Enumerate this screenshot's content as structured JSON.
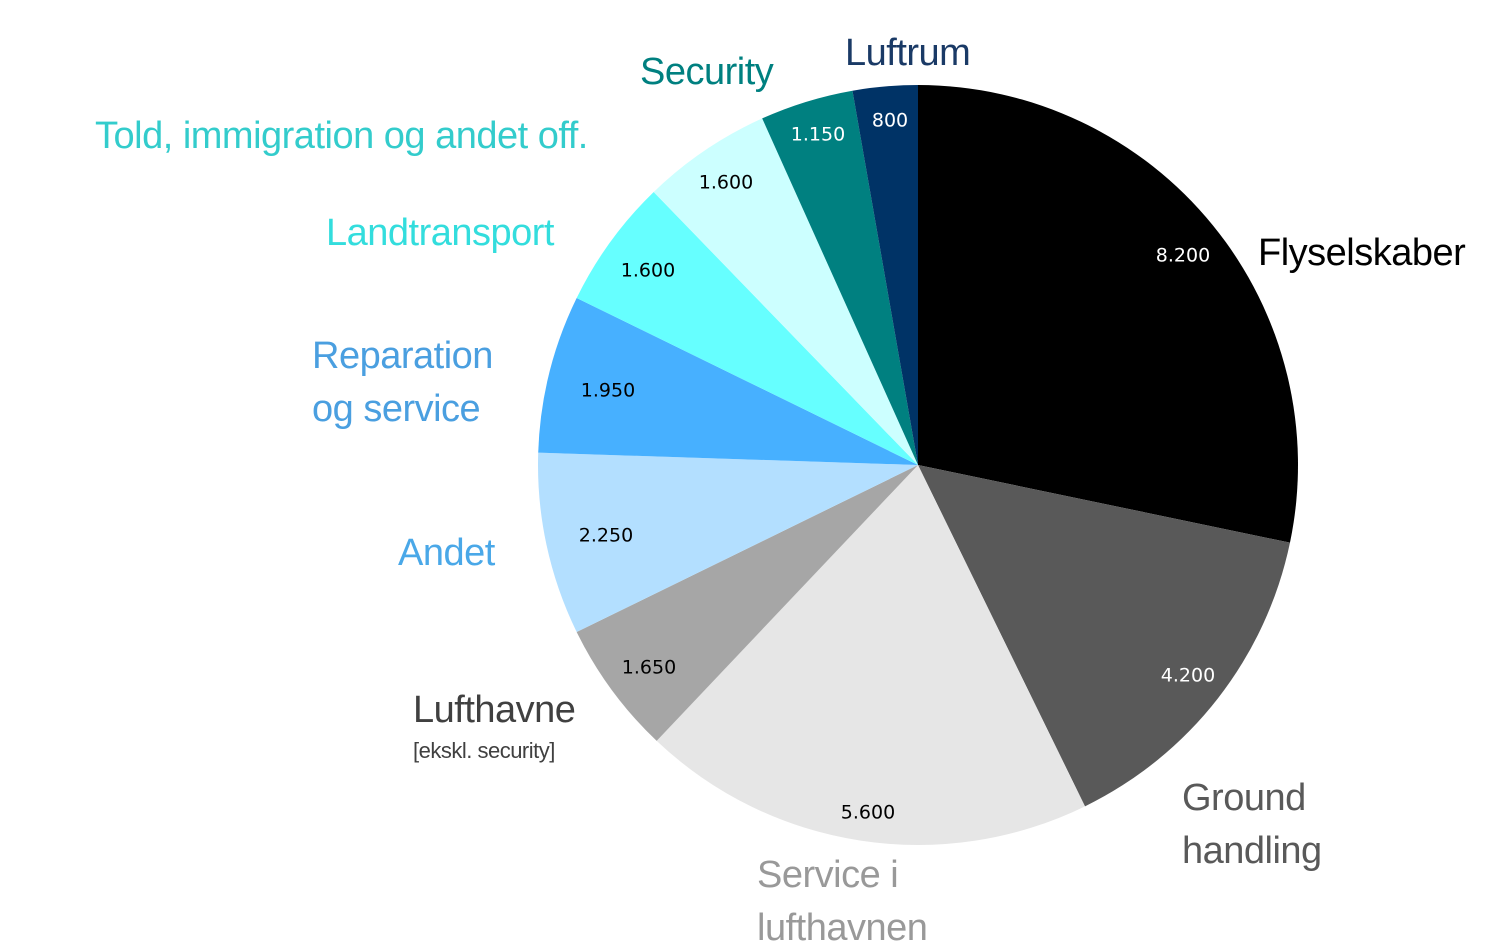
{
  "chart_data": {
    "type": "pie",
    "categories": [
      "Flyselskaber",
      "Ground\nhandling",
      "Service i\nlufthavnen",
      "Lufthavne\n[ekskl. security]",
      "Andet",
      "Reparation\nog service",
      "Landtransport",
      "Told, immigration og andet off.",
      "Security",
      "Luftrum"
    ],
    "values": [
      8200,
      4200,
      5600,
      1650,
      2250,
      1950,
      1600,
      1600,
      1150,
      800
    ],
    "value_labels": [
      "8.200",
      "4.200",
      "5.600",
      "1.650",
      "2.250",
      "1.950",
      "1.600",
      "1.600",
      "1.150",
      "800"
    ],
    "colors": [
      "#000000",
      "#595959",
      "#e6e6e6",
      "#a6a6a6",
      "#b3dfff",
      "#47b0ff",
      "#66ffff",
      "#ccffff",
      "#008080",
      "#003366"
    ],
    "label_colors": [
      "#000000",
      "#595959",
      "#999999",
      "#404040",
      "#4aa8e8",
      "#4a9fe0",
      "#33dddd",
      "#33cccc",
      "#008080",
      "#1a3a66"
    ]
  }
}
